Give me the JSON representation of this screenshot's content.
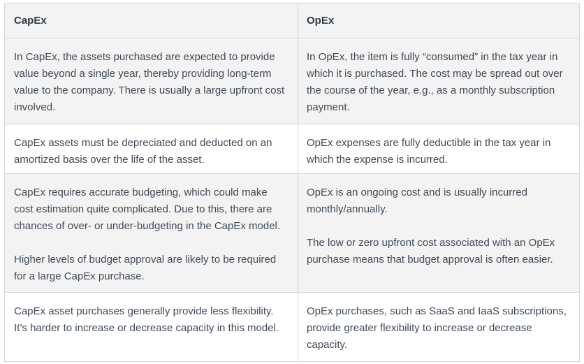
{
  "table": {
    "headers": {
      "capex": "CapEx",
      "opex": "OpEx"
    },
    "rows": [
      {
        "capex": [
          "In CapEx, the assets purchased are expected to provide value beyond a single year, thereby providing long-term value to the company. There is usually a large upfront cost involved."
        ],
        "opex": [
          "In OpEx, the item is fully “consumed” in the tax year in which it is purchased. The cost may be spread out over the course of the year, e.g., as a monthly subscription payment."
        ]
      },
      {
        "capex": [
          "CapEx assets must be depreciated and deducted on an amortized basis over the life of the asset."
        ],
        "opex": [
          "OpEx expenses are fully deductible in the tax year in which the expense is incurred."
        ]
      },
      {
        "capex": [
          "CapEx requires accurate budgeting, which could make cost estimation quite complicated. Due to this, there are chances of over- or under-budgeting in the CapEx model.",
          "Higher levels of budget approval are likely to be required for a large CapEx purchase."
        ],
        "opex": [
          "OpEx is an ongoing cost and is usually incurred monthly/annually.",
          "The low or zero upfront cost associated with an OpEx purchase means that budget approval is often easier."
        ]
      },
      {
        "capex": [
          "CapEx asset purchases generally provide less flexibility. It’s harder to increase or decrease capacity in this model."
        ],
        "opex": [
          "OpEx purchases, such as SaaS and IaaS subscriptions, provide greater flexibility to increase or decrease capacity."
        ]
      }
    ]
  }
}
